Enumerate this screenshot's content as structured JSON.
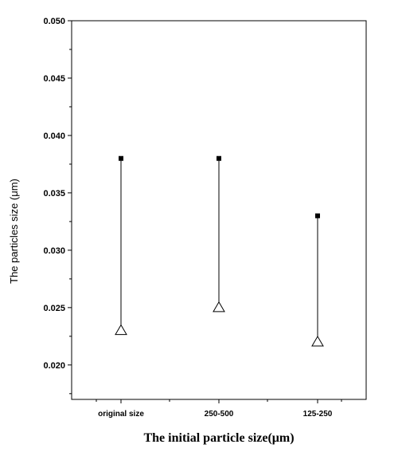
{
  "chart_data": {
    "type": "range",
    "xlabel": "The initial particle size(μm)",
    "ylabel": "The particles size (μm)",
    "categories": [
      "original size",
      "250-500",
      "125-250"
    ],
    "series": [
      {
        "marker": "filled-square",
        "values": [
          0.038,
          0.038,
          0.033
        ]
      },
      {
        "marker": "open-triangle",
        "values": [
          0.023,
          0.025,
          0.022
        ]
      }
    ],
    "ylim": [
      0.017,
      0.05
    ],
    "yticks": [
      "0.020",
      "0.025",
      "0.030",
      "0.035",
      "0.040",
      "0.045",
      "0.050"
    ],
    "grid": false,
    "legend": "none"
  }
}
